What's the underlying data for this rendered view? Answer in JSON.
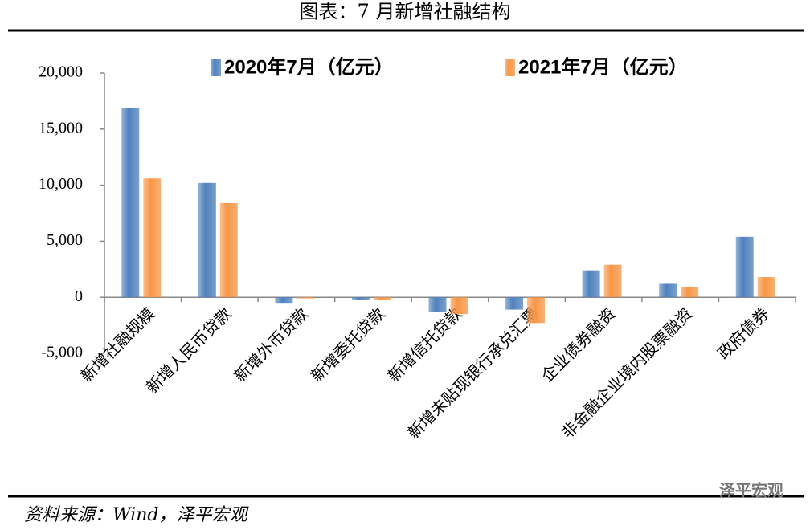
{
  "chart_data": {
    "type": "bar",
    "title": "图表：7 月新增社融结构",
    "source": "资料来源：Wind，泽平宏观",
    "watermark": "泽平宏观",
    "categories": [
      "新增社融规模",
      "新增人民币贷款",
      "新增外币贷款",
      "新增委托贷款",
      "新增信托贷款",
      "新增未贴现银行承兑汇票",
      "企业债券融资",
      "非金融企业境内股票融资",
      "政府债券"
    ],
    "series": [
      {
        "name": "2020年7月（亿元）",
        "color": "#4f81bd",
        "values": [
          16900,
          10200,
          -500,
          -200,
          -1300,
          -1100,
          2400,
          1200,
          5400
        ]
      },
      {
        "name": "2021年7月（亿元）",
        "color": "#f79646",
        "values": [
          10600,
          8400,
          -100,
          -200,
          -1500,
          -2300,
          2900,
          900,
          1800
        ]
      }
    ],
    "ylim": [
      -5000,
      20000
    ],
    "yticks": [
      {
        "value": -5000,
        "label": "-5,000"
      },
      0,
      {
        "value": 5000,
        "label": "5,000"
      },
      {
        "value": 10000,
        "label": "10,000"
      },
      {
        "value": 15000,
        "label": "15,000"
      },
      {
        "value": 20000,
        "label": "20,000"
      }
    ],
    "grid": false
  }
}
